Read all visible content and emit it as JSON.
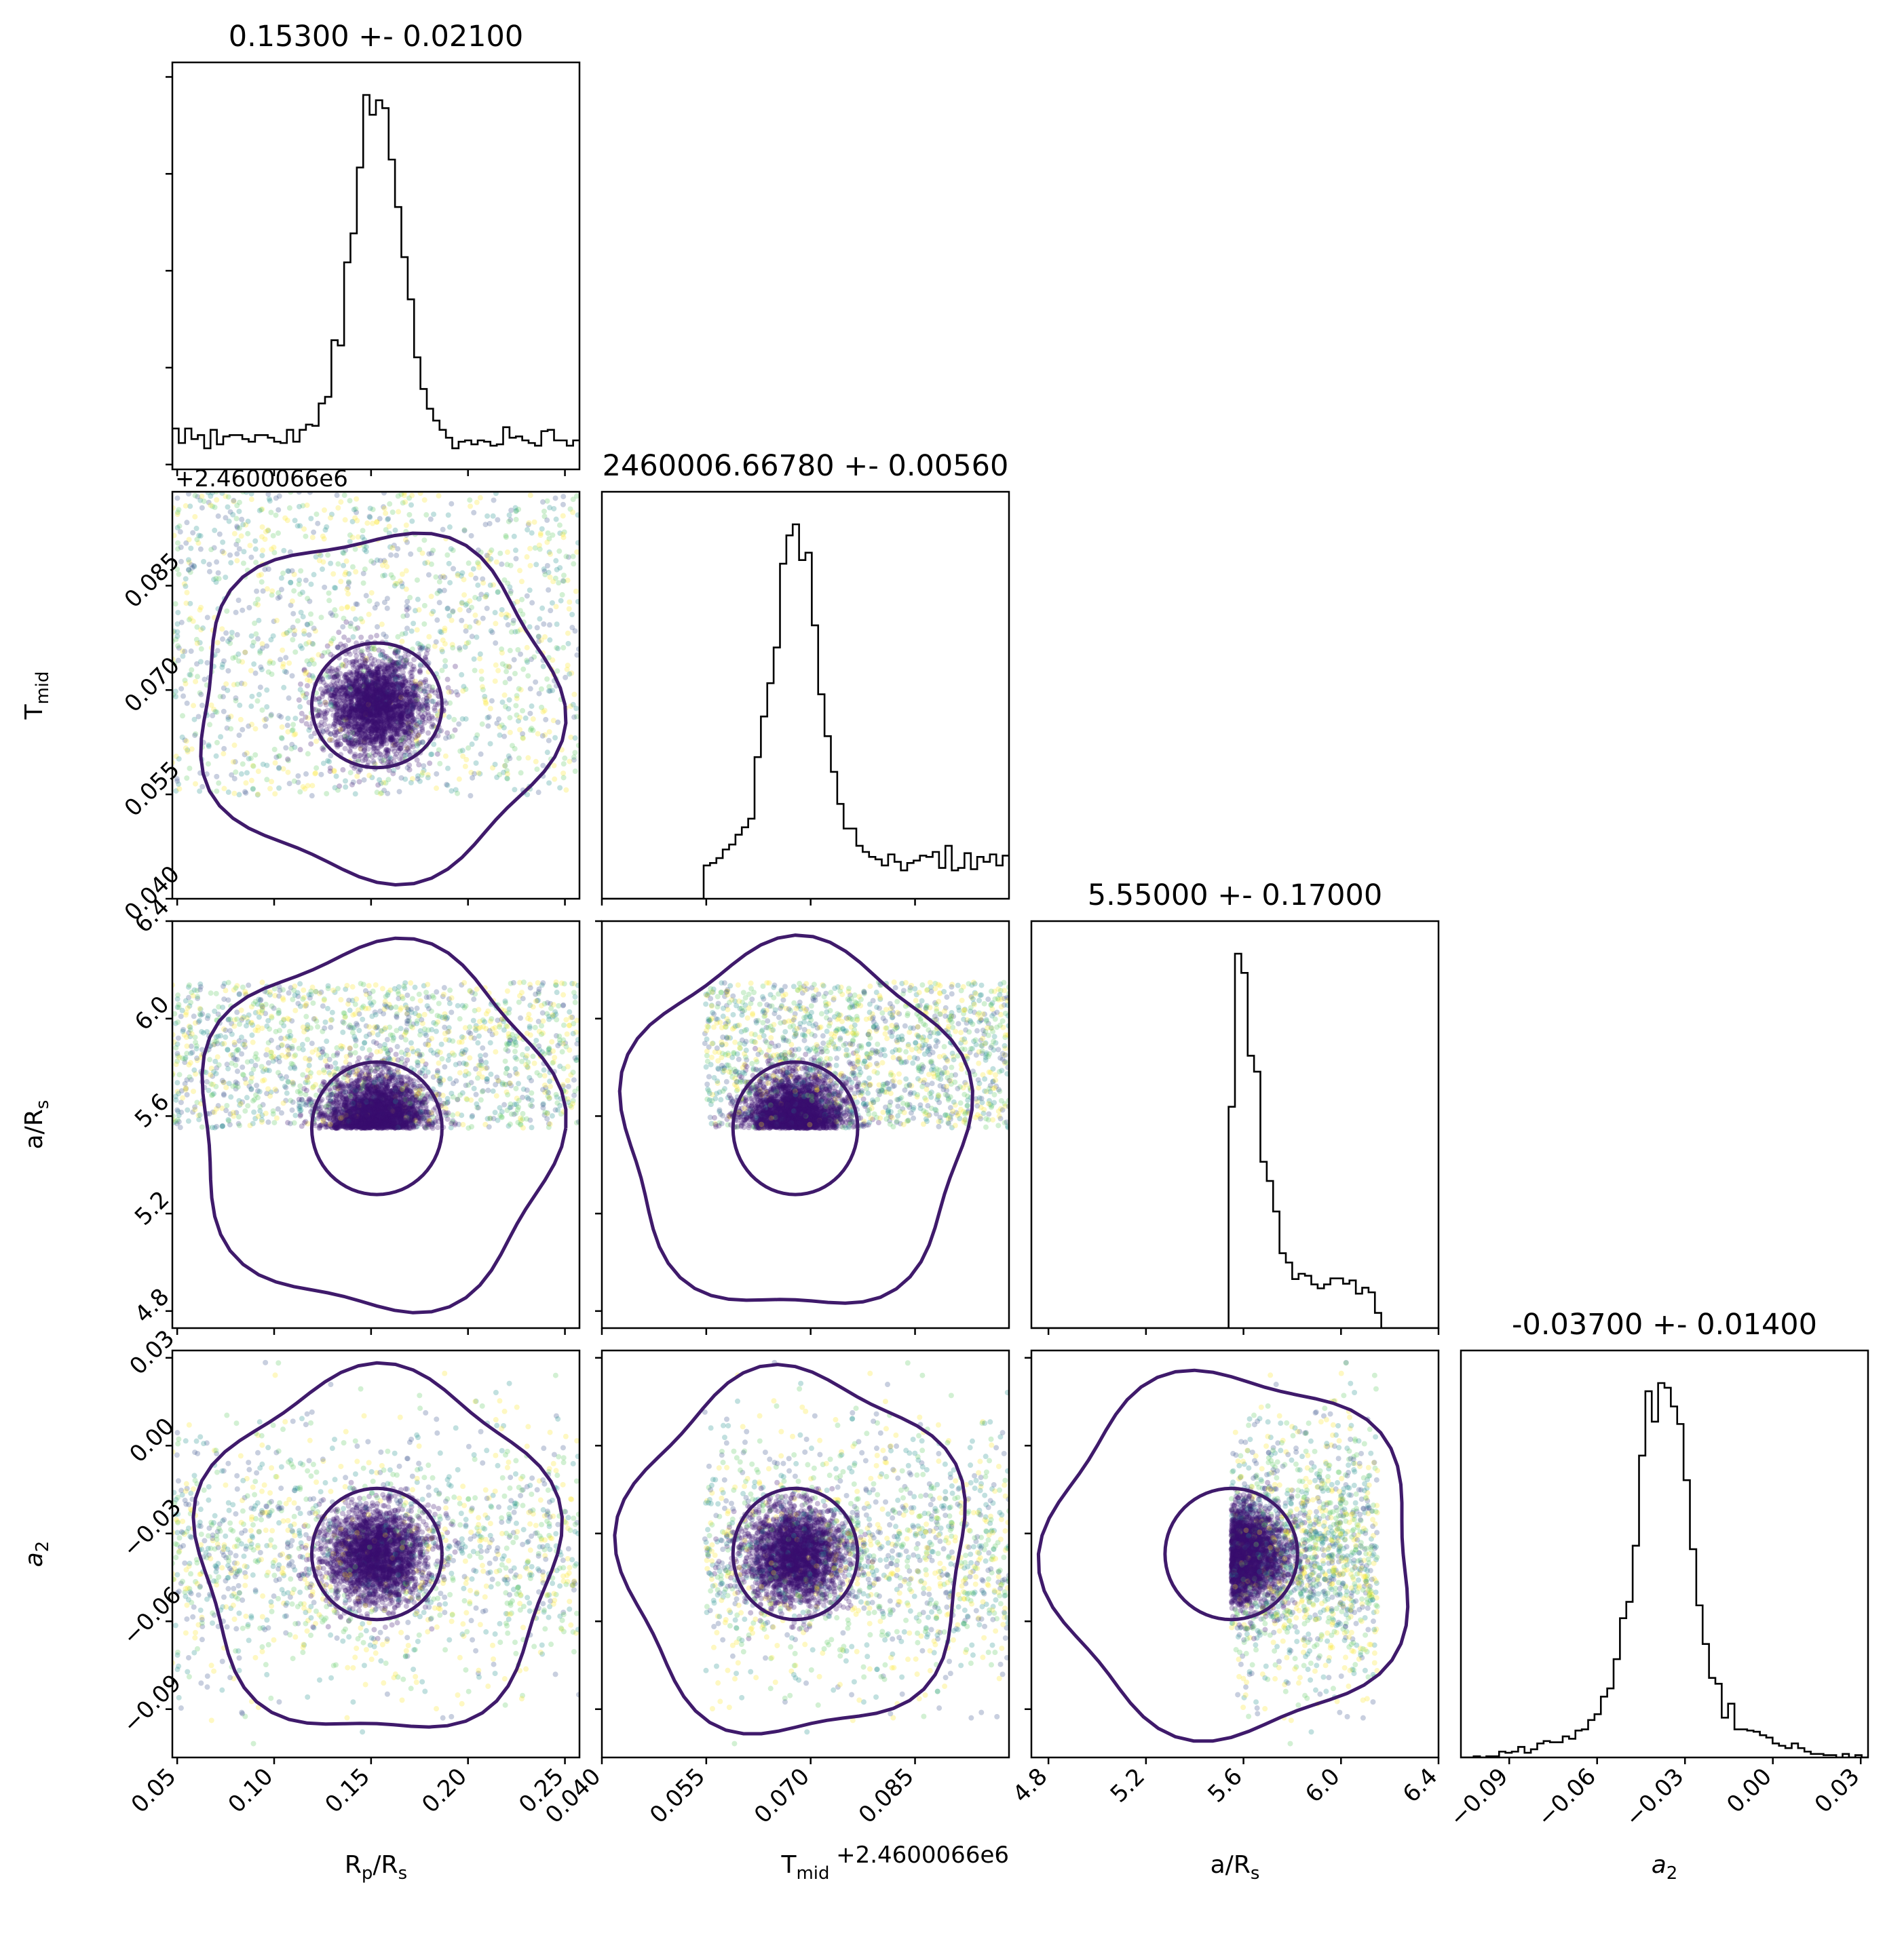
{
  "chart_data": {
    "type": "scatter",
    "kind": "corner plot",
    "parameters": [
      {
        "key": "rp",
        "label": "R$_p$/R$_s$",
        "label_main": "R",
        "label_parts": [
          [
            "R",
            ""
          ],
          [
            "p",
            "sub"
          ],
          [
            "/R",
            ""
          ],
          [
            "s",
            "sub"
          ]
        ],
        "title": "0.15300 +- 0.02100",
        "range": [
          0.0475,
          0.2575
        ],
        "ticks": [
          0.05,
          0.1,
          0.15,
          0.2,
          0.25
        ],
        "tick_labels": [
          "0.05",
          "0.10",
          "0.15",
          "0.20",
          "0.25"
        ],
        "median": 0.153,
        "sigma": 0.021
      },
      {
        "key": "tmid",
        "label": "T$_{mid}$",
        "label_parts": [
          [
            "T",
            ""
          ],
          [
            "mid",
            "sub"
          ]
        ],
        "title": "2460006.66780 +- 0.00560",
        "offset_label": "+2.4600066e6",
        "range": [
          0.04,
          0.0985
        ],
        "ticks": [
          0.04,
          0.055,
          0.07,
          0.085
        ],
        "tick_labels": [
          "0.040",
          "0.055",
          "0.070",
          "0.085"
        ],
        "median": 0.0678,
        "sigma": 0.0056
      },
      {
        "key": "ars",
        "label": "a/R$_s$",
        "label_parts": [
          [
            "a/R",
            ""
          ],
          [
            "s",
            "sub"
          ]
        ],
        "title": "5.55000 +- 0.17000",
        "range": [
          4.73,
          6.4
        ],
        "ticks": [
          4.8,
          5.2,
          5.6,
          6.0,
          6.4
        ],
        "tick_labels": [
          "4.8",
          "5.2",
          "5.6",
          "6.0",
          "6.4"
        ],
        "median": 5.55,
        "sigma": 0.17
      },
      {
        "key": "a2",
        "label": "a$_2$",
        "label_parts": [
          [
            "a",
            "ital"
          ],
          [
            "2",
            "sub"
          ]
        ],
        "title": "-0.03700 +- 0.01400",
        "range": [
          -0.1065,
          0.0325
        ],
        "ticks": [
          -0.09,
          -0.06,
          -0.03,
          0.0,
          0.03
        ],
        "tick_labels": [
          "−0.09",
          "−0.06",
          "−0.03",
          "0.00",
          "0.03"
        ],
        "median": -0.037,
        "sigma": 0.014
      }
    ],
    "prior_bounds": {
      "tmid": [
        0.0548,
        0.0985
      ],
      "ars": [
        5.55,
        6.15
      ]
    },
    "n_samples_shown": 4000,
    "contour_levels": 2,
    "colors": {
      "points": "#3b0f70",
      "points_alt": [
        "#fde725",
        "#21918c",
        "#5ec962",
        "#3b528b"
      ],
      "contour": "#3f1a6b",
      "hist": "#000000"
    },
    "grid": false,
    "legend": "none"
  }
}
